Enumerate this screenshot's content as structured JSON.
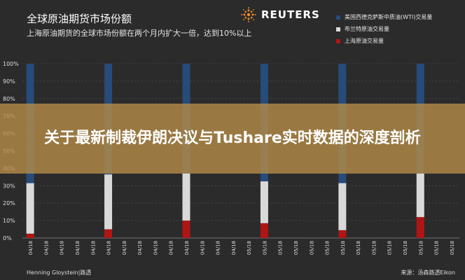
{
  "header": {
    "title": "全球原油期货市场份额",
    "subtitle": "上海原油期货的全球市场份额在两个月内扩大一倍，达到10%以上"
  },
  "logo": {
    "text": "REUTERS",
    "icon": "reuters-dot-logo"
  },
  "banner": {
    "text": "关于最新制裁伊朗决议与Tushare实时数据的深度剖析"
  },
  "footer": {
    "left": "Henning Gloystein|路透",
    "right": "来源：汤森路透Eikon"
  },
  "colors": {
    "wti": "#274b7a",
    "brent": "#d9d9d9",
    "shanghai": "#b01515",
    "background": "#2b2b2b",
    "grid": "#555555"
  },
  "chart_data": {
    "type": "bar",
    "stacked": true,
    "ylim": [
      0,
      100
    ],
    "y_ticks": [
      "0%",
      "10%",
      "20%",
      "30%",
      "40%",
      "50%",
      "60%",
      "70%",
      "80%",
      "90%",
      "100%"
    ],
    "categories": [
      "04/18",
      "04/18",
      "04/18",
      "04/18",
      "04/18",
      "04/18",
      "04/18",
      "04/18",
      "04/18",
      "04/18",
      "04/18",
      "04/18",
      "04/18",
      "04/18",
      "05/18",
      "05/18",
      "05/18",
      "05/18",
      "05/18",
      "05/18",
      "05/18",
      "05/18",
      "05/18",
      "05/18",
      "05/18",
      "05/18",
      "05/18",
      "05/18"
    ],
    "series": [
      {
        "name": "上海原油交易量",
        "color": "#b01515",
        "values": [
          2.5,
          null,
          null,
          null,
          null,
          5,
          null,
          null,
          null,
          null,
          10,
          null,
          null,
          null,
          null,
          8.5,
          null,
          null,
          null,
          null,
          4.5,
          null,
          null,
          null,
          null,
          12,
          null,
          null
        ]
      },
      {
        "name": "布兰特原油交易量",
        "color": "#d9d9d9",
        "values": [
          29,
          null,
          null,
          null,
          null,
          31.5,
          null,
          null,
          null,
          null,
          27,
          null,
          null,
          null,
          null,
          24,
          null,
          null,
          null,
          null,
          27,
          null,
          null,
          null,
          null,
          25,
          null,
          null
        ]
      },
      {
        "name": "美国西德克萨斯中质油(WTI)交易量",
        "color": "#274b7a",
        "values": [
          68.5,
          null,
          null,
          null,
          null,
          63.5,
          null,
          null,
          null,
          null,
          63,
          null,
          null,
          null,
          null,
          67.5,
          null,
          null,
          null,
          null,
          68.5,
          null,
          null,
          null,
          null,
          63,
          null,
          null
        ]
      }
    ],
    "legend_position": "top-right",
    "grid": true
  }
}
